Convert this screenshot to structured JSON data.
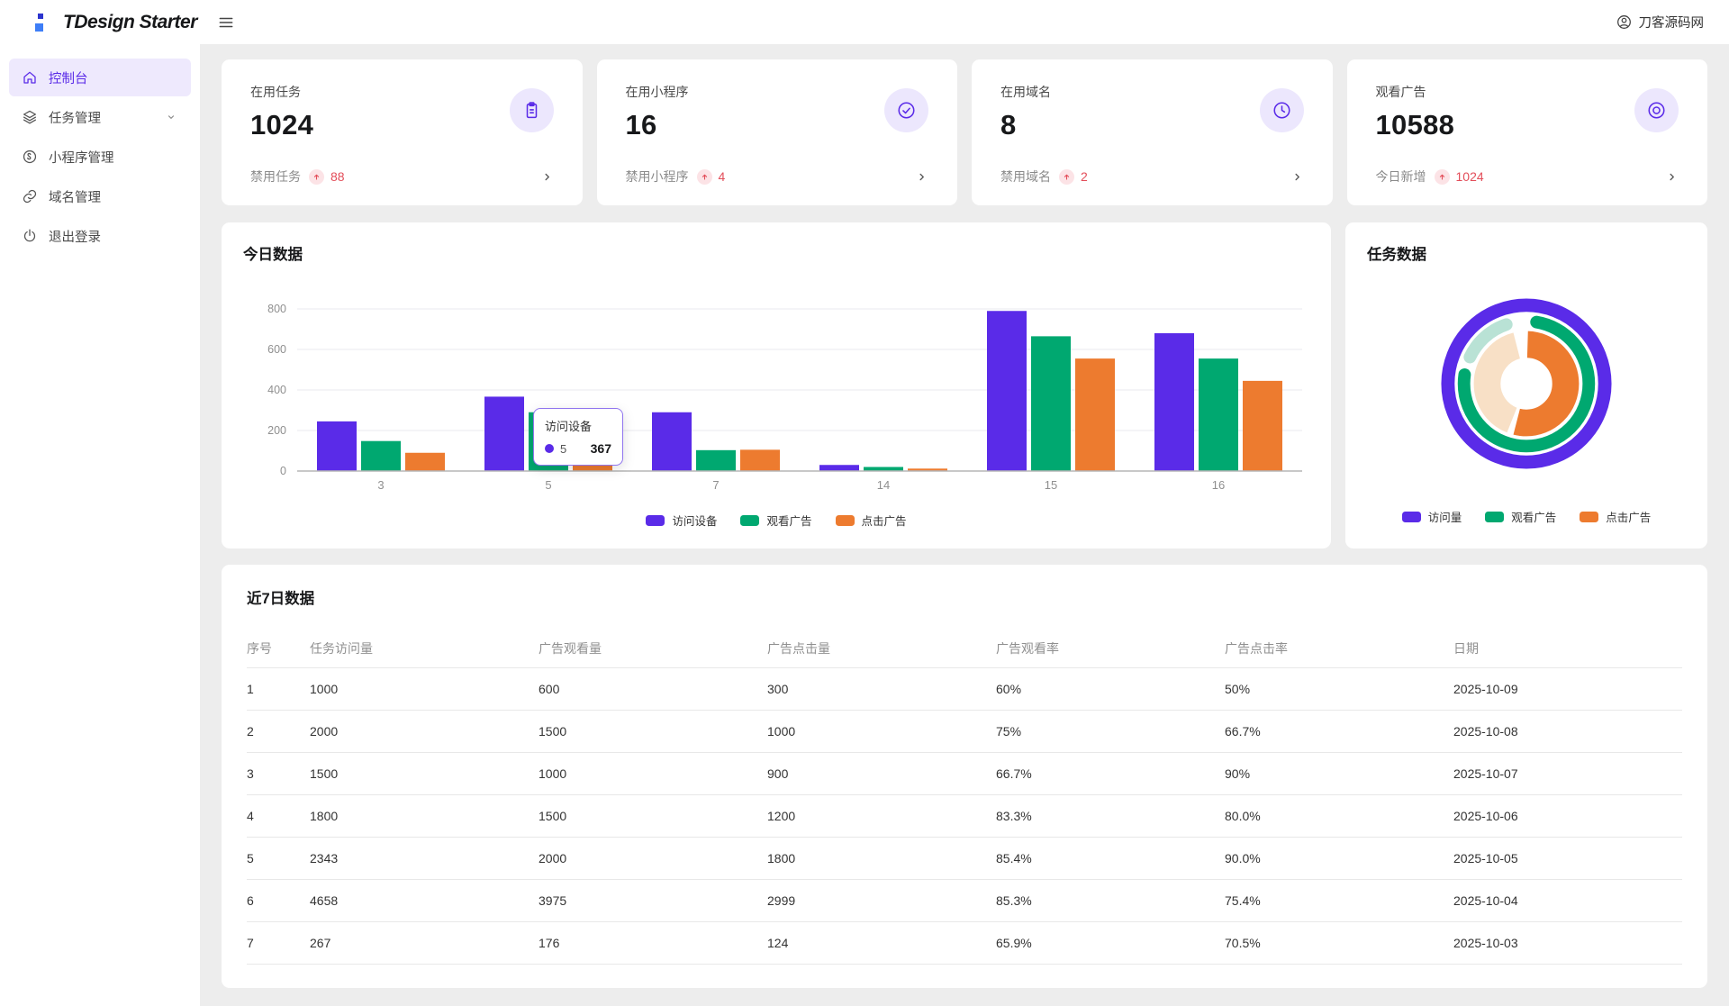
{
  "header": {
    "logo_text": "TDesign Starter",
    "user_name": "刀客源码网"
  },
  "sidebar": {
    "items": [
      {
        "label": "控制台",
        "icon": "home-icon",
        "active": true,
        "expandable": false
      },
      {
        "label": "任务管理",
        "icon": "layers-icon",
        "active": false,
        "expandable": true
      },
      {
        "label": "小程序管理",
        "icon": "miniprogram-icon",
        "active": false,
        "expandable": false
      },
      {
        "label": "域名管理",
        "icon": "link-icon",
        "active": false,
        "expandable": false
      },
      {
        "label": "退出登录",
        "icon": "power-icon",
        "active": false,
        "expandable": false
      }
    ]
  },
  "stat_cards": [
    {
      "label": "在用任务",
      "value": "1024",
      "icon": "clipboard-icon",
      "footer_label": "禁用任务",
      "trend": "88"
    },
    {
      "label": "在用小程序",
      "value": "16",
      "icon": "check-circle-icon",
      "footer_label": "禁用小程序",
      "trend": "4"
    },
    {
      "label": "在用域名",
      "value": "8",
      "icon": "clock-icon",
      "footer_label": "禁用域名",
      "trend": "2"
    },
    {
      "label": "观看广告",
      "value": "10588",
      "icon": "eye-icon",
      "footer_label": "今日新增",
      "trend": "1024"
    }
  ],
  "chart_data": [
    {
      "type": "bar",
      "title": "今日数据",
      "categories": [
        "3",
        "5",
        "7",
        "14",
        "15",
        "16"
      ],
      "series": [
        {
          "name": "访问设备",
          "color": "#5a2be8",
          "values": [
            245,
            367,
            290,
            30,
            790,
            680
          ]
        },
        {
          "name": "观看广告",
          "color": "#00a870",
          "values": [
            148,
            290,
            103,
            20,
            665,
            555
          ]
        },
        {
          "name": "点击广告",
          "color": "#ed7b2f",
          "values": [
            90,
            245,
            105,
            12,
            555,
            445
          ]
        }
      ],
      "xlabel": "",
      "ylabel": "",
      "ylim": [
        0,
        880
      ],
      "yticks": [
        0,
        200,
        400,
        600,
        800
      ],
      "grid": true,
      "legend_position": "bottom",
      "tooltip": {
        "series": "访问设备",
        "category": "5",
        "value": "367"
      }
    },
    {
      "type": "donut",
      "title": "任务数据",
      "legend": [
        "访问量",
        "观看广告",
        "点击广告"
      ],
      "rings": [
        {
          "name": "访问量",
          "radius": 88,
          "width": 15,
          "cap": "butt",
          "segments": [
            {
              "color": "#5a2be8",
              "from": 0,
              "to": 100
            }
          ]
        },
        {
          "name": "观看广告",
          "radius": 70,
          "width": 14,
          "cap": "round",
          "segments": [
            {
              "color": "#00a870",
              "from": 1,
              "to": 79
            },
            {
              "color": "#b9e2d5",
              "from": 80.5,
              "to": 96.5
            }
          ]
        },
        {
          "name": "点击广告",
          "radius": 44,
          "width": 30,
          "cap": "butt",
          "segments": [
            {
              "color": "#ed7b2f",
              "from": 0.5,
              "to": 54
            },
            {
              "color": "#f8e0c6",
              "from": 56,
              "to": 96
            }
          ]
        }
      ],
      "legend_position": "bottom"
    }
  ],
  "table": {
    "title": "近7日数据",
    "columns": [
      "序号",
      "任务访问量",
      "广告观看量",
      "广告点击量",
      "广告观看率",
      "广告点击率",
      "日期"
    ],
    "rows": [
      [
        "1",
        "1000",
        "600",
        "300",
        "60%",
        "50%",
        "2025-10-09"
      ],
      [
        "2",
        "2000",
        "1500",
        "1000",
        "75%",
        "66.7%",
        "2025-10-08"
      ],
      [
        "3",
        "1500",
        "1000",
        "900",
        "66.7%",
        "90%",
        "2025-10-07"
      ],
      [
        "4",
        "1800",
        "1500",
        "1200",
        "83.3%",
        "80.0%",
        "2025-10-06"
      ],
      [
        "5",
        "2343",
        "2000",
        "1800",
        "85.4%",
        "90.0%",
        "2025-10-05"
      ],
      [
        "6",
        "4658",
        "3975",
        "2999",
        "85.3%",
        "75.4%",
        "2025-10-04"
      ],
      [
        "7",
        "267",
        "176",
        "124",
        "65.9%",
        "70.5%",
        "2025-10-03"
      ]
    ]
  },
  "colors": {
    "accent": "#5a2be8",
    "accent_bg": "#ece7fd",
    "success": "#00a870",
    "warning": "#ed7b2f",
    "danger": "#e34d59",
    "danger_bg": "#fce3e6",
    "page_bg": "#ededed",
    "grid_line": "#ededf2",
    "axis_line": "#b5b5b5",
    "tick_text": "#8f8f8f"
  }
}
